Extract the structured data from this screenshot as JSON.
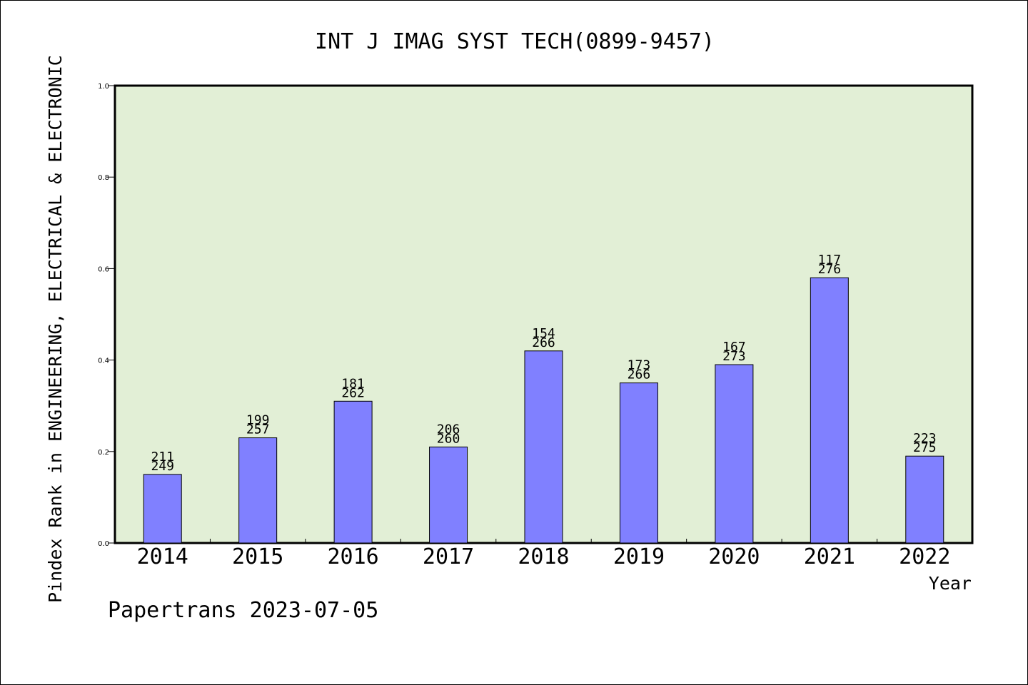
{
  "chart_data": {
    "type": "bar",
    "title": "INT J IMAG SYST TECH(0899-9457)",
    "ylabel": "Pindex Rank in ENGINEERING, ELECTRICAL & ELECTRONIC",
    "xlabel": "Year",
    "footer": "Papertrans 2023-07-05",
    "ylim": [
      0,
      1.0
    ],
    "yticks": [
      "0.0",
      "0.2",
      "0.4",
      "0.6",
      "0.8",
      "1.0"
    ],
    "grid": false,
    "categories": [
      "2014",
      "2015",
      "2016",
      "2017",
      "2018",
      "2019",
      "2020",
      "2021",
      "2022"
    ],
    "values": [
      0.15,
      0.23,
      0.31,
      0.21,
      0.42,
      0.35,
      0.39,
      0.58,
      0.19
    ],
    "rank_labels": [
      "211",
      "199",
      "181",
      "206",
      "154",
      "173",
      "167",
      "117",
      "223"
    ],
    "total_labels": [
      "249",
      "257",
      "262",
      "260",
      "266",
      "266",
      "273",
      "276",
      "275"
    ],
    "colors": {
      "bar": "#8080ff",
      "plot_background": "#e2efd6",
      "axis": "#000000"
    }
  }
}
